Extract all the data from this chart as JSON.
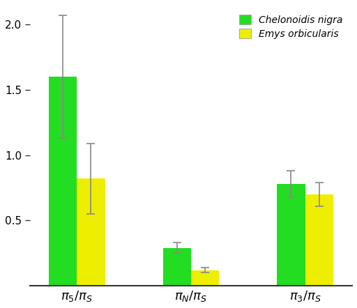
{
  "green_values": [
    1.6,
    0.29,
    0.78
  ],
  "yellow_values": [
    0.82,
    0.12,
    0.7
  ],
  "green_errors": [
    0.47,
    0.04,
    0.1
  ],
  "yellow_errors": [
    0.27,
    0.02,
    0.09
  ],
  "green_color": "#22dd22",
  "yellow_color": "#eeee00",
  "green_label": "Chelonoidis nigra",
  "yellow_label": "Emys orbicularis",
  "ylim": [
    0,
    2.15
  ],
  "yticks": [
    0.5,
    1.0,
    1.5,
    2.0
  ],
  "bar_width": 0.42,
  "group_centers": [
    1.0,
    2.7,
    4.4
  ],
  "error_color": "#888888",
  "background_color": "#ffffff",
  "tick_labels": [
    "$\\pi_5/\\pi_S$",
    "$\\pi_N/\\pi_S$",
    "$\\pi_3/\\pi_S$"
  ]
}
